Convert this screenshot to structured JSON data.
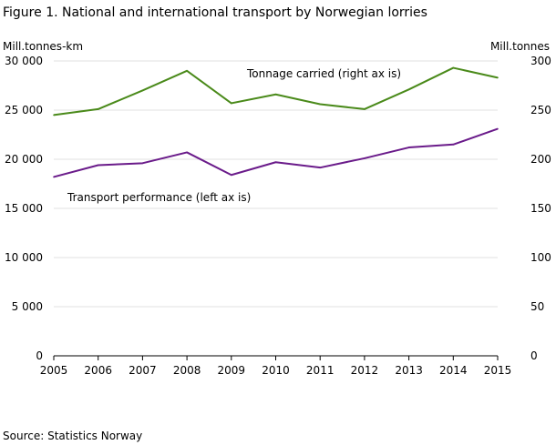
{
  "figure": {
    "title": "Figure 1.  National and international transport by Norwegian lorries",
    "source": "Source: Statistics Norway"
  },
  "chart_data": {
    "type": "line",
    "x": [
      2005,
      2006,
      2007,
      2008,
      2009,
      2010,
      2011,
      2012,
      2013,
      2014,
      2015
    ],
    "left_axis": {
      "label": "Mill.tonnes-km",
      "ylim": [
        0,
        30000
      ],
      "ticks": [
        "0",
        "5 000",
        "10 000",
        "15 000",
        "20 000",
        "25 000",
        "30 000"
      ]
    },
    "right_axis": {
      "label": "Mill.tonnes",
      "ylim": [
        0,
        300
      ],
      "ticks": [
        "0",
        "50",
        "100",
        "150",
        "200",
        "250",
        "300"
      ]
    },
    "series": [
      {
        "name": "Tonnage carried  (right ax is)",
        "axis": "right",
        "color": "#4a8a1a",
        "values": [
          245,
          251,
          270,
          290,
          257,
          266,
          256,
          251,
          271,
          293,
          283
        ]
      },
      {
        "name": "Transport performance  (left ax is)",
        "axis": "left",
        "color": "#6a1b8a",
        "values": [
          18200,
          19400,
          19600,
          20700,
          18400,
          19700,
          19150,
          20100,
          21200,
          21500,
          23100
        ]
      }
    ],
    "grid": "horizontal",
    "gridColor": "#e0e0e0"
  }
}
